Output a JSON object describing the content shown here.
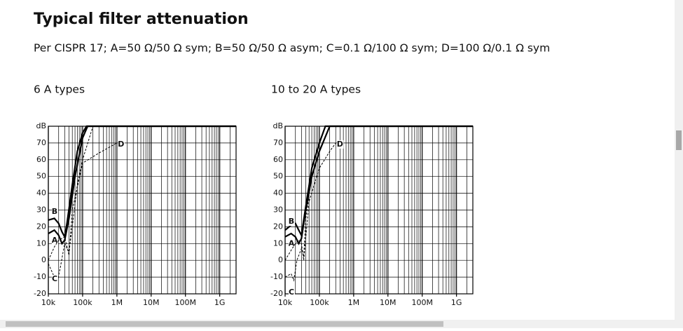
{
  "page": {
    "title": "Typical filter attenuation",
    "subtitle": "Per CISPR 17; A=50 Ω/50 Ω sym; B=50 Ω/50 Ω asym; C=0.1 Ω/100 Ω sym; D=100 Ω/0.1 Ω sym"
  },
  "chart_data": [
    {
      "type": "line",
      "title": "6 A types",
      "y_label": "dB",
      "x_log": true,
      "grid": true,
      "xlim": [
        10000,
        3000000000
      ],
      "ylim": [
        -20,
        80
      ],
      "xticks": [
        {
          "value": 10000,
          "label": "10k"
        },
        {
          "value": 100000,
          "label": "100k"
        },
        {
          "value": 1000000,
          "label": "1M"
        },
        {
          "value": 10000000,
          "label": "10M"
        },
        {
          "value": 100000000,
          "label": "100M"
        },
        {
          "value": 1000000000,
          "label": "1G"
        }
      ],
      "yticks": [
        -20,
        -10,
        0,
        10,
        20,
        30,
        40,
        50,
        60,
        70
      ],
      "series": [
        {
          "name": "A",
          "color": "#000000",
          "style": "solid",
          "x": [
            10000,
            15000,
            20000,
            25000,
            30000,
            40000,
            60000,
            100000,
            140000,
            3000000000
          ],
          "values": [
            16,
            18,
            15,
            10,
            12,
            25,
            50,
            73,
            80,
            80
          ]
        },
        {
          "name": "B",
          "color": "#000000",
          "style": "solid",
          "x": [
            10000,
            15000,
            20000,
            25000,
            30000,
            35000,
            50000,
            70000,
            100000,
            130000,
            3000000000
          ],
          "values": [
            24,
            25,
            22,
            17,
            14,
            22,
            45,
            65,
            76,
            80,
            80
          ]
        },
        {
          "name": "C",
          "color": "#000000",
          "style": "dashed",
          "x": [
            10000,
            15000,
            18000,
            22000,
            30000,
            40000,
            50000,
            70000,
            100000,
            200000
          ],
          "values": [
            -2,
            -10,
            -13,
            -5,
            10,
            5,
            20,
            45,
            60,
            80
          ]
        },
        {
          "name": "D",
          "color": "#000000",
          "style": "dashed",
          "x": [
            10000,
            15000,
            20000,
            30000,
            40000,
            50000,
            100000,
            300000,
            1000000
          ],
          "values": [
            0,
            8,
            12,
            14,
            3,
            30,
            58,
            64,
            70
          ]
        }
      ]
    },
    {
      "type": "line",
      "title": "10 to 20 A types",
      "y_label": "dB",
      "x_log": true,
      "grid": true,
      "xlim": [
        10000,
        3000000000
      ],
      "ylim": [
        -20,
        80
      ],
      "xticks": [
        {
          "value": 10000,
          "label": "10k"
        },
        {
          "value": 100000,
          "label": "100k"
        },
        {
          "value": 1000000,
          "label": "1M"
        },
        {
          "value": 10000000,
          "label": "10M"
        },
        {
          "value": 100000000,
          "label": "100M"
        },
        {
          "value": 1000000000,
          "label": "1G"
        }
      ],
      "yticks": [
        -20,
        -10,
        0,
        10,
        20,
        30,
        40,
        50,
        60,
        70
      ],
      "series": [
        {
          "name": "A",
          "color": "#000000",
          "style": "solid",
          "x": [
            10000,
            15000,
            20000,
            25000,
            30000,
            40000,
            60000,
            100000,
            200000,
            3000000000
          ],
          "values": [
            14,
            16,
            14,
            10,
            13,
            30,
            50,
            65,
            80,
            80
          ]
        },
        {
          "name": "B",
          "color": "#000000",
          "style": "solid",
          "x": [
            10000,
            15000,
            20000,
            25000,
            30000,
            40000,
            60000,
            100000,
            150000,
            3000000000
          ],
          "values": [
            18,
            21,
            22,
            18,
            15,
            32,
            55,
            70,
            80,
            80
          ]
        },
        {
          "name": "C",
          "color": "#000000",
          "style": "dashed",
          "x": [
            10000,
            15000,
            18000,
            22000,
            30000,
            35000,
            40000,
            60000,
            100000,
            200000
          ],
          "values": [
            -10,
            -8,
            -12,
            0,
            7,
            2,
            25,
            50,
            65,
            80
          ]
        },
        {
          "name": "D",
          "color": "#000000",
          "style": "dashed",
          "x": [
            10000,
            15000,
            20000,
            25000,
            30000,
            35000,
            50000,
            100000,
            200000,
            300000
          ],
          "values": [
            0,
            6,
            10,
            12,
            10,
            0,
            35,
            55,
            65,
            70
          ]
        }
      ]
    }
  ]
}
